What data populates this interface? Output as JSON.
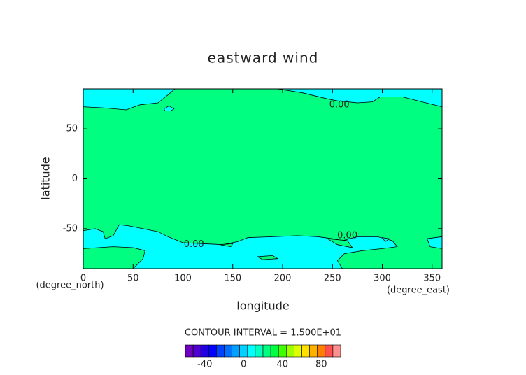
{
  "chart_data": {
    "type": "contour",
    "title": "eastward wind",
    "x_label": "longitude",
    "y_label": "latitude",
    "x_unit": "(degree_east)",
    "y_unit": "(degree_north)",
    "contour_interval_text": "CONTOUR INTERVAL = 1.500E+01",
    "xlim": [
      0,
      360
    ],
    "ylim": [
      -90,
      90
    ],
    "xticks": [
      0,
      50,
      100,
      150,
      200,
      250,
      300,
      350
    ],
    "yticks": [
      -50,
      0,
      50
    ],
    "background_color": "#00ff80",
    "regions": [
      {
        "color": "#00ffff",
        "x": [
          0,
          0,
          20,
          43,
          57,
          75,
          85,
          92
        ],
        "y": [
          90,
          72,
          71,
          69,
          74,
          76,
          84,
          90
        ]
      },
      {
        "color": "#00ffff",
        "x": [
          195,
          220,
          245,
          255,
          275,
          290,
          298,
          320,
          340,
          360,
          360
        ],
        "y": [
          90,
          86,
          80,
          78,
          76,
          77,
          82,
          82,
          77,
          72,
          90
        ]
      },
      {
        "color": "#00ffff",
        "x": [
          81,
          86,
          91,
          88,
          82
        ],
        "y": [
          70,
          73,
          70,
          68,
          68
        ]
      },
      {
        "color": "#00ffff",
        "x": [
          0,
          12,
          20,
          22,
          30,
          36,
          45,
          60,
          75,
          85,
          100,
          120,
          140,
          155,
          165,
          190,
          215,
          235,
          250,
          260,
          275,
          295,
          310,
          315,
          300,
          280,
          262,
          255,
          260,
          0
        ],
        "y": [
          -52,
          -50,
          -53,
          -60,
          -57,
          -46,
          -47,
          -50,
          -53,
          -58,
          -64,
          -65,
          -66,
          -63,
          -59,
          -58,
          -57,
          -58,
          -60,
          -62,
          -58,
          -58,
          -62,
          -68,
          -70,
          -72,
          -75,
          -82,
          -90,
          -90
        ]
      },
      {
        "color": "#00ffff",
        "x": [
          345,
          360,
          360,
          348
        ],
        "y": [
          -60,
          -58,
          -70,
          -68
        ]
      },
      {
        "color": "#00ff80",
        "x": [
          0,
          30,
          50,
          62,
          60,
          50,
          0
        ],
        "y": [
          -70,
          -68,
          -69,
          -72,
          -80,
          -90,
          -90
        ]
      },
      {
        "color": "#00ff80",
        "x": [
          245,
          265,
          270,
          255
        ],
        "y": [
          -60,
          -62,
          -69,
          -66
        ]
      },
      {
        "color": "#00ff80",
        "x": [
          175,
          190,
          195,
          180
        ],
        "y": [
          -78,
          -77,
          -80,
          -81
        ]
      },
      {
        "color": "#00ff80",
        "x": [
          137,
          150,
          148
        ],
        "y": [
          -66,
          -65,
          -68
        ]
      },
      {
        "color": "#00ffff",
        "x": [
          300,
          307,
          303
        ],
        "y": [
          -59,
          -60,
          -63
        ]
      }
    ],
    "contour_labels": [
      {
        "value": 0,
        "label": "0.00",
        "x": 257,
        "y": 74
      },
      {
        "value": 0,
        "label": "0.00",
        "x": 265,
        "y": -57
      },
      {
        "value": 0,
        "label": "0.00",
        "x": 111,
        "y": -66
      }
    ],
    "colorbar": {
      "lim": [
        -60,
        100
      ],
      "ticks": [
        -40,
        0,
        40,
        80
      ],
      "colors": [
        "#7000c0",
        "#5000d0",
        "#2000e0",
        "#0000ff",
        "#0040ff",
        "#0070ff",
        "#00a0ff",
        "#00d0ff",
        "#00ffff",
        "#00ffc0",
        "#00ff80",
        "#00ff40",
        "#40ff00",
        "#a0ff00",
        "#e0ff00",
        "#ffe000",
        "#ffb000",
        "#ff8000",
        "#ff5050",
        "#ff9090"
      ]
    }
  }
}
